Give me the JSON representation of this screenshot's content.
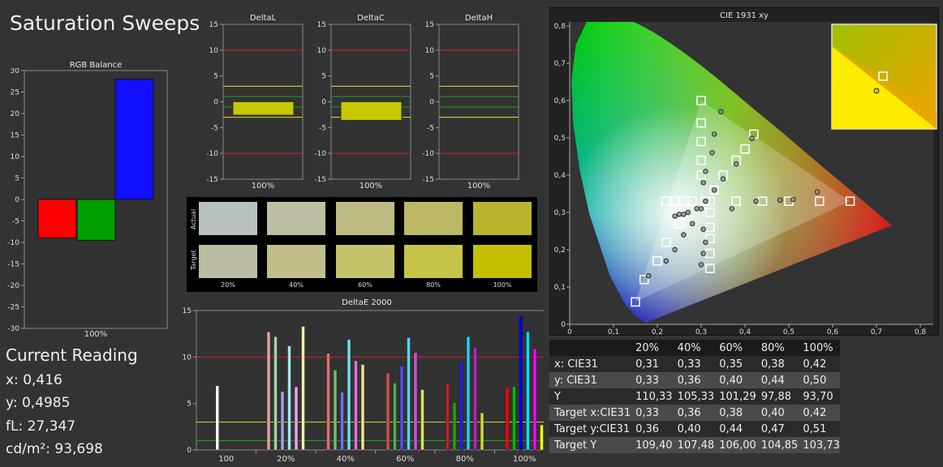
{
  "page_title": "Saturation Sweeps",
  "rgb_balance": {
    "title": "RGB Balance",
    "y_ticks": [
      "30",
      "25",
      "20",
      "15",
      "10",
      "5",
      "0",
      "-5",
      "-10",
      "-15",
      "-20",
      "-25",
      "-30"
    ],
    "x_label": "100%",
    "colors": {
      "red": "#ff0000",
      "green": "#00a000",
      "blue": "#1010ff"
    }
  },
  "delta_charts": [
    {
      "title": "DeltaL",
      "x_label": "100%"
    },
    {
      "title": "DeltaC",
      "x_label": "100%"
    },
    {
      "title": "DeltaH",
      "x_label": "100%"
    }
  ],
  "delta_y_ticks": [
    "15",
    "10",
    "5",
    "0",
    "-5",
    "-10",
    "-15"
  ],
  "swatches": {
    "row_labels": {
      "actual": "Actual",
      "target": "Target"
    },
    "columns": [
      "20%",
      "40%",
      "60%",
      "80%",
      "100%"
    ],
    "actual_colors": [
      "#b9c0c0",
      "#bdbea3",
      "#bfbc84",
      "#bdb866",
      "#bab52e"
    ],
    "target_colors": [
      "#bcbca2",
      "#c1c08a",
      "#c5c46c",
      "#c5c449",
      "#c4c000"
    ]
  },
  "deltae_chart": {
    "title": "DeltaE 2000",
    "y_ticks": [
      "15",
      "10",
      "5",
      "0"
    ],
    "x_labels": [
      "100",
      "20%",
      "40%",
      "60%",
      "80%",
      "100%"
    ]
  },
  "cie_chart": {
    "title": "CIE 1931 xy",
    "x_ticks": [
      "0",
      "0,1",
      "0,2",
      "0,3",
      "0,4",
      "0,5",
      "0,6",
      "0,7",
      "0,8"
    ],
    "y_ticks": [
      "0,8",
      "0,7",
      "0,6",
      "0,5",
      "0,4",
      "0,3",
      "0,2",
      "0,1",
      "0"
    ]
  },
  "current_reading": {
    "heading": "Current Reading",
    "x": "x: 0,416",
    "y": "y: 0,4985",
    "fl": "fL: 27,347",
    "cdm2": "cd/m²: 93,698"
  },
  "table": {
    "headers": [
      "",
      "20%",
      "40%",
      "60%",
      "80%",
      "100%"
    ],
    "rows": [
      [
        "x: CIE31",
        "0,31",
        "0,33",
        "0,35",
        "0,38",
        "0,42"
      ],
      [
        "y: CIE31",
        "0,33",
        "0,36",
        "0,40",
        "0,44",
        "0,50"
      ],
      [
        "Y",
        "110,33",
        "105,33",
        "101,29",
        "97,88",
        "93,70"
      ],
      [
        "Target x:CIE31",
        "0,33",
        "0,36",
        "0,38",
        "0,40",
        "0,42"
      ],
      [
        "Target y:CIE31",
        "0,36",
        "0,40",
        "0,44",
        "0,47",
        "0,51"
      ],
      [
        "Target Y",
        "109,40",
        "107,48",
        "106,00",
        "104,85",
        "103,73"
      ]
    ]
  },
  "chart_data": [
    {
      "type": "bar",
      "title": "RGB Balance",
      "categories": [
        "100%"
      ],
      "series": [
        {
          "name": "Red",
          "values": [
            -9
          ]
        },
        {
          "name": "Green",
          "values": [
            -9.5
          ]
        },
        {
          "name": "Blue",
          "values": [
            28
          ]
        }
      ],
      "ylim": [
        -30,
        30
      ]
    },
    {
      "type": "bar",
      "title": "DeltaL",
      "categories": [
        "100%"
      ],
      "values": [
        -2.6
      ],
      "ylim": [
        -15,
        15
      ]
    },
    {
      "type": "bar",
      "title": "DeltaC",
      "categories": [
        "100%"
      ],
      "values": [
        -3.6
      ],
      "ylim": [
        -15,
        15
      ]
    },
    {
      "type": "bar",
      "title": "DeltaH",
      "categories": [
        "100%"
      ],
      "values": [
        0
      ],
      "ylim": [
        -15,
        15
      ]
    },
    {
      "type": "bar",
      "title": "DeltaE 2000",
      "categories": [
        "100",
        "20%",
        "40%",
        "60%",
        "80%",
        "100%"
      ],
      "groups": [
        {
          "label": "100",
          "values": [
            6.9
          ],
          "colors": [
            "#ffffff"
          ]
        },
        {
          "label": "20%",
          "values": [
            12.7,
            12.2,
            6.3,
            11.2,
            6.8,
            13.3
          ],
          "colors": [
            "#e6a0a0",
            "#a0d8a0",
            "#a0a0f0",
            "#a0e8f0",
            "#f0a0f0",
            "#f0f0b0"
          ]
        },
        {
          "label": "40%",
          "values": [
            10.4,
            8.6,
            6.2,
            11.9,
            9.6,
            9.2
          ],
          "colors": [
            "#e07070",
            "#70c070",
            "#7070f0",
            "#70e0f0",
            "#e070e0",
            "#e8e890"
          ]
        },
        {
          "label": "60%",
          "values": [
            8.3,
            7.2,
            9.0,
            12.1,
            10.5,
            6.5
          ],
          "colors": [
            "#d05050",
            "#50b050",
            "#5050f0",
            "#50d8f0",
            "#d050d0",
            "#e0e060"
          ]
        },
        {
          "label": "80%",
          "values": [
            7.2,
            5.1,
            9.5,
            12.2,
            11.0,
            4.0
          ],
          "colors": [
            "#c02020",
            "#20a020",
            "#2020f0",
            "#20d0f0",
            "#c020c0",
            "#d8d830"
          ]
        },
        {
          "label": "100%",
          "values": [
            6.8,
            6.8,
            14.4,
            12.7,
            10.9,
            2.7
          ],
          "colors": [
            "#ff0000",
            "#00c000",
            "#0000ff",
            "#00e0ff",
            "#ff00ff",
            "#ffff00"
          ]
        }
      ],
      "reference_lines": [
        10,
        3,
        1
      ],
      "ylim": [
        0,
        15
      ]
    },
    {
      "type": "scatter",
      "title": "CIE 1931 xy",
      "xlim": [
        0,
        0.8
      ],
      "ylim": [
        0,
        0.8
      ],
      "series": [
        {
          "name": "Target",
          "x": [
            0.64,
            0.57,
            0.5,
            0.44,
            0.38,
            0.3,
            0.3,
            0.3,
            0.3,
            0.3,
            0.15,
            0.17,
            0.2,
            0.22,
            0.25,
            0.32,
            0.32,
            0.32,
            0.32,
            0.32,
            0.32,
            0.33,
            0.35,
            0.38,
            0.4,
            0.42,
            0.22,
            0.24,
            0.26,
            0.28,
            0.31
          ],
          "y": [
            0.33,
            0.33,
            0.33,
            0.33,
            0.33,
            0.6,
            0.54,
            0.49,
            0.44,
            0.4,
            0.06,
            0.12,
            0.17,
            0.22,
            0.27,
            0.33,
            0.3,
            0.26,
            0.23,
            0.19,
            0.15,
            0.36,
            0.4,
            0.44,
            0.47,
            0.51,
            0.33,
            0.33,
            0.33,
            0.33,
            0.33
          ]
        },
        {
          "name": "Actual",
          "x": [
            0.565,
            0.51,
            0.48,
            0.425,
            0.37,
            0.345,
            0.33,
            0.325,
            0.31,
            0.305,
            0.18,
            0.22,
            0.24,
            0.26,
            0.28,
            0.3,
            0.305,
            0.31,
            0.305,
            0.3,
            0.24,
            0.25,
            0.26,
            0.27,
            0.29,
            0.31,
            0.33,
            0.35,
            0.38,
            0.416,
            0.705
          ],
          "y": [
            0.355,
            0.335,
            0.333,
            0.33,
            0.31,
            0.57,
            0.51,
            0.46,
            0.41,
            0.38,
            0.13,
            0.17,
            0.2,
            0.24,
            0.27,
            0.31,
            0.255,
            0.22,
            0.19,
            0.16,
            0.29,
            0.295,
            0.295,
            0.3,
            0.31,
            0.33,
            0.36,
            0.39,
            0.43,
            0.4985,
            0.65
          ]
        }
      ]
    }
  ]
}
